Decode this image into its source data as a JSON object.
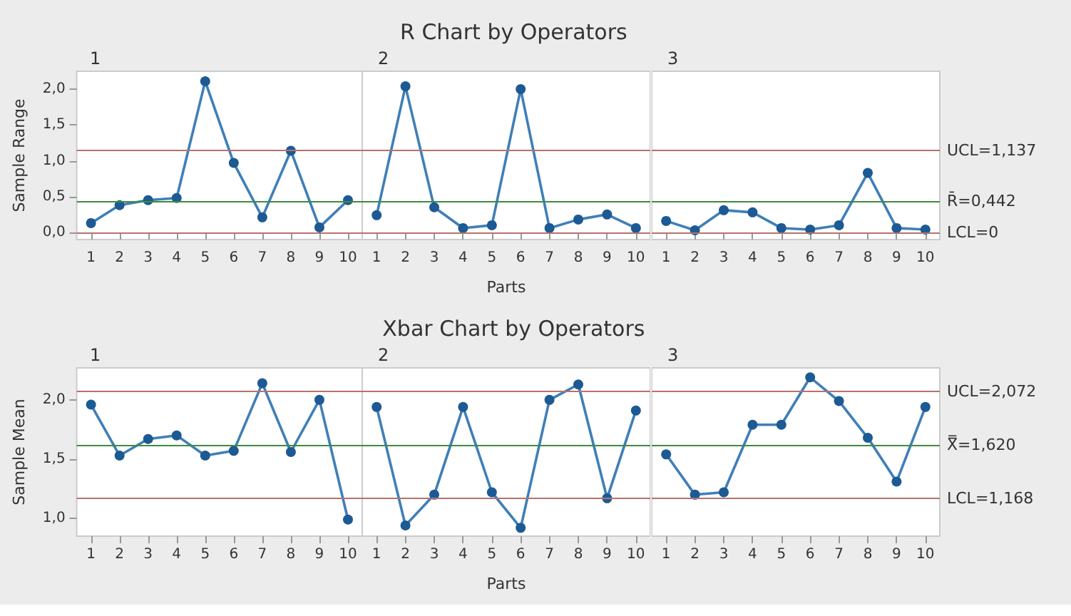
{
  "chart_data": [
    {
      "type": "line",
      "subtitle": "1",
      "ylabel": "Sample Range",
      "marker": "circle",
      "line_style": "solid",
      "grid": false,
      "categories": [
        "1",
        "2",
        "3",
        "4",
        "5",
        "6",
        "7",
        "8",
        "9",
        "10"
      ],
      "series": [
        {
          "color": "#3f7fb8",
          "values": [
            0.13,
            0.38,
            0.45,
            0.48,
            2.11,
            0.97,
            0.21,
            1.14,
            0.07,
            0.45
          ]
        }
      ],
      "ylim": [
        -0.1,
        2.25
      ],
      "yticks": [
        {
          "value": 0,
          "label": "0,0"
        },
        {
          "value": 0.5,
          "label": "0,5"
        },
        {
          "value": 1,
          "label": "1,0"
        },
        {
          "value": 1.5,
          "label": "1,5"
        },
        {
          "value": 2,
          "label": "2,0"
        }
      ],
      "ref_lines": [
        {
          "axis": "y",
          "value": 1.137,
          "color": "#b5736b",
          "line_style": "solid"
        },
        {
          "axis": "y",
          "value": 0.442,
          "color": "#3d8c3d",
          "line_style": "solid"
        },
        {
          "axis": "y",
          "value": 0,
          "color": "#b5736b",
          "line_style": "solid"
        }
      ]
    },
    {
      "type": "line",
      "title": "R Chart by Operators",
      "subtitle": "2",
      "xlabel": "Parts",
      "marker": "circle",
      "line_style": "solid",
      "grid": false,
      "tick_labels": "x",
      "categories": [
        "1",
        "2",
        "3",
        "4",
        "5",
        "6",
        "7",
        "8",
        "9",
        "10"
      ],
      "series": [
        {
          "color": "#3f7fb8",
          "values": [
            0.24,
            2.04,
            0.35,
            0.06,
            0.1,
            2.0,
            0.06,
            0.18,
            0.25,
            0.06
          ]
        }
      ],
      "ylim": [
        -0.1,
        2.25
      ],
      "ref_lines": [
        {
          "axis": "y",
          "value": 1.137,
          "color": "#b5736b",
          "line_style": "solid"
        },
        {
          "axis": "y",
          "value": 0.442,
          "color": "#3d8c3d",
          "line_style": "solid"
        },
        {
          "axis": "y",
          "value": 0,
          "color": "#b5736b",
          "line_style": "solid"
        }
      ]
    },
    {
      "type": "line",
      "subtitle": "3",
      "marker": "circle",
      "line_style": "solid",
      "grid": false,
      "tick_labels": "x",
      "categories": [
        "1",
        "2",
        "3",
        "4",
        "5",
        "6",
        "7",
        "8",
        "9",
        "10"
      ],
      "series": [
        {
          "color": "#3f7fb8",
          "values": [
            0.16,
            0.03,
            0.31,
            0.28,
            0.06,
            0.04,
            0.1,
            0.83,
            0.06,
            0.04
          ]
        }
      ],
      "ylim": [
        -0.1,
        2.25
      ],
      "ref_lines": [
        {
          "axis": "y",
          "value": 1.137,
          "label": "UCL=1,137",
          "color": "#b5736b",
          "line_style": "solid"
        },
        {
          "axis": "y",
          "value": 0.442,
          "label": "R̄=0,442",
          "color": "#3d8c3d",
          "line_style": "solid"
        },
        {
          "axis": "y",
          "value": 0,
          "label": "LCL=0",
          "color": "#b5736b",
          "line_style": "solid"
        }
      ]
    },
    {
      "type": "line",
      "subtitle": "1",
      "ylabel": "Sample Mean",
      "marker": "circle",
      "line_style": "solid",
      "grid": false,
      "categories": [
        "1",
        "2",
        "3",
        "4",
        "5",
        "6",
        "7",
        "8",
        "9",
        "10"
      ],
      "series": [
        {
          "color": "#3f7fb8",
          "values": [
            1.96,
            1.53,
            1.67,
            1.7,
            1.53,
            1.57,
            2.14,
            1.56,
            2.0,
            0.99
          ]
        }
      ],
      "ylim": [
        0.85,
        2.27
      ],
      "yticks": [
        {
          "value": 1,
          "label": "1,0"
        },
        {
          "value": 1.5,
          "label": "1,5"
        },
        {
          "value": 2,
          "label": "2,0"
        }
      ],
      "ref_lines": [
        {
          "axis": "y",
          "value": 2.072,
          "color": "#b5736b",
          "line_style": "solid"
        },
        {
          "axis": "y",
          "value": 1.62,
          "color": "#3d8c3d",
          "line_style": "solid"
        },
        {
          "axis": "y",
          "value": 1.168,
          "color": "#b5736b",
          "line_style": "solid"
        }
      ]
    },
    {
      "type": "line",
      "title": "Xbar Chart by Operators",
      "subtitle": "2",
      "xlabel": "Parts",
      "marker": "circle",
      "line_style": "solid",
      "grid": false,
      "tick_labels": "x",
      "categories": [
        "1",
        "2",
        "3",
        "4",
        "5",
        "6",
        "7",
        "8",
        "9",
        "10"
      ],
      "series": [
        {
          "color": "#3f7fb8",
          "values": [
            1.94,
            0.94,
            1.2,
            1.94,
            1.22,
            0.92,
            2.0,
            2.13,
            1.17,
            1.91
          ]
        }
      ],
      "ylim": [
        0.85,
        2.27
      ],
      "ref_lines": [
        {
          "axis": "y",
          "value": 2.072,
          "color": "#b5736b",
          "line_style": "solid"
        },
        {
          "axis": "y",
          "value": 1.62,
          "color": "#3d8c3d",
          "line_style": "solid"
        },
        {
          "axis": "y",
          "value": 1.168,
          "color": "#b5736b",
          "line_style": "solid"
        }
      ]
    },
    {
      "type": "line",
      "subtitle": "3",
      "marker": "circle",
      "line_style": "solid",
      "grid": false,
      "tick_labels": "x",
      "categories": [
        "1",
        "2",
        "3",
        "4",
        "5",
        "6",
        "7",
        "8",
        "9",
        "10"
      ],
      "series": [
        {
          "color": "#3f7fb8",
          "values": [
            1.54,
            1.2,
            1.22,
            1.79,
            1.79,
            2.19,
            1.99,
            1.68,
            1.31,
            1.94
          ]
        }
      ],
      "ylim": [
        0.85,
        2.27
      ],
      "ref_lines": [
        {
          "axis": "y",
          "value": 2.072,
          "label": "UCL=2,072",
          "color": "#b5736b",
          "line_style": "solid"
        },
        {
          "axis": "y",
          "value": 1.62,
          "label": "X̿=1,620",
          "color": "#3d8c3d",
          "line_style": "solid"
        },
        {
          "axis": "y",
          "value": 1.168,
          "label": "LCL=1,168",
          "color": "#b5736b",
          "line_style": "solid"
        }
      ]
    }
  ]
}
